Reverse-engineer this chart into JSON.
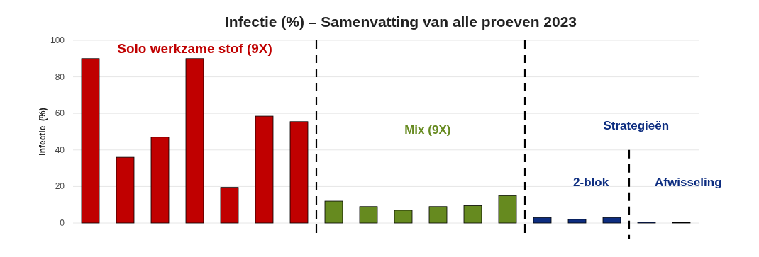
{
  "chart_data": {
    "type": "bar",
    "title": "Infectie (%) – Samenvatting van alle proeven 2023",
    "ylabel": "Infectie  (%)",
    "categories": [
      null,
      null,
      null,
      null,
      null,
      null,
      null,
      null,
      null,
      null,
      null,
      null,
      null,
      null,
      null,
      null,
      null,
      null
    ],
    "values": [
      90,
      36,
      47,
      90,
      19.5,
      58.5,
      55.5,
      12,
      9,
      7,
      9,
      9.5,
      15,
      3,
      2,
      3,
      0.5,
      0.3
    ],
    "colors": [
      "#c00000",
      "#c00000",
      "#c00000",
      "#c00000",
      "#c00000",
      "#c00000",
      "#c00000",
      "#668a1f",
      "#668a1f",
      "#668a1f",
      "#668a1f",
      "#668a1f",
      "#668a1f",
      "#0d2d80",
      "#0d2d80",
      "#0d2d80",
      "#0d2d80",
      "#0d2d80"
    ],
    "ylim": [
      0,
      100
    ],
    "yticks": [
      0,
      20,
      40,
      60,
      80,
      100
    ],
    "grid": "y",
    "annotations": [
      "Solo werkzame stof (9X)",
      "Mix (9X)",
      "Strategieën",
      "2-blok",
      "Afwisseling"
    ]
  }
}
